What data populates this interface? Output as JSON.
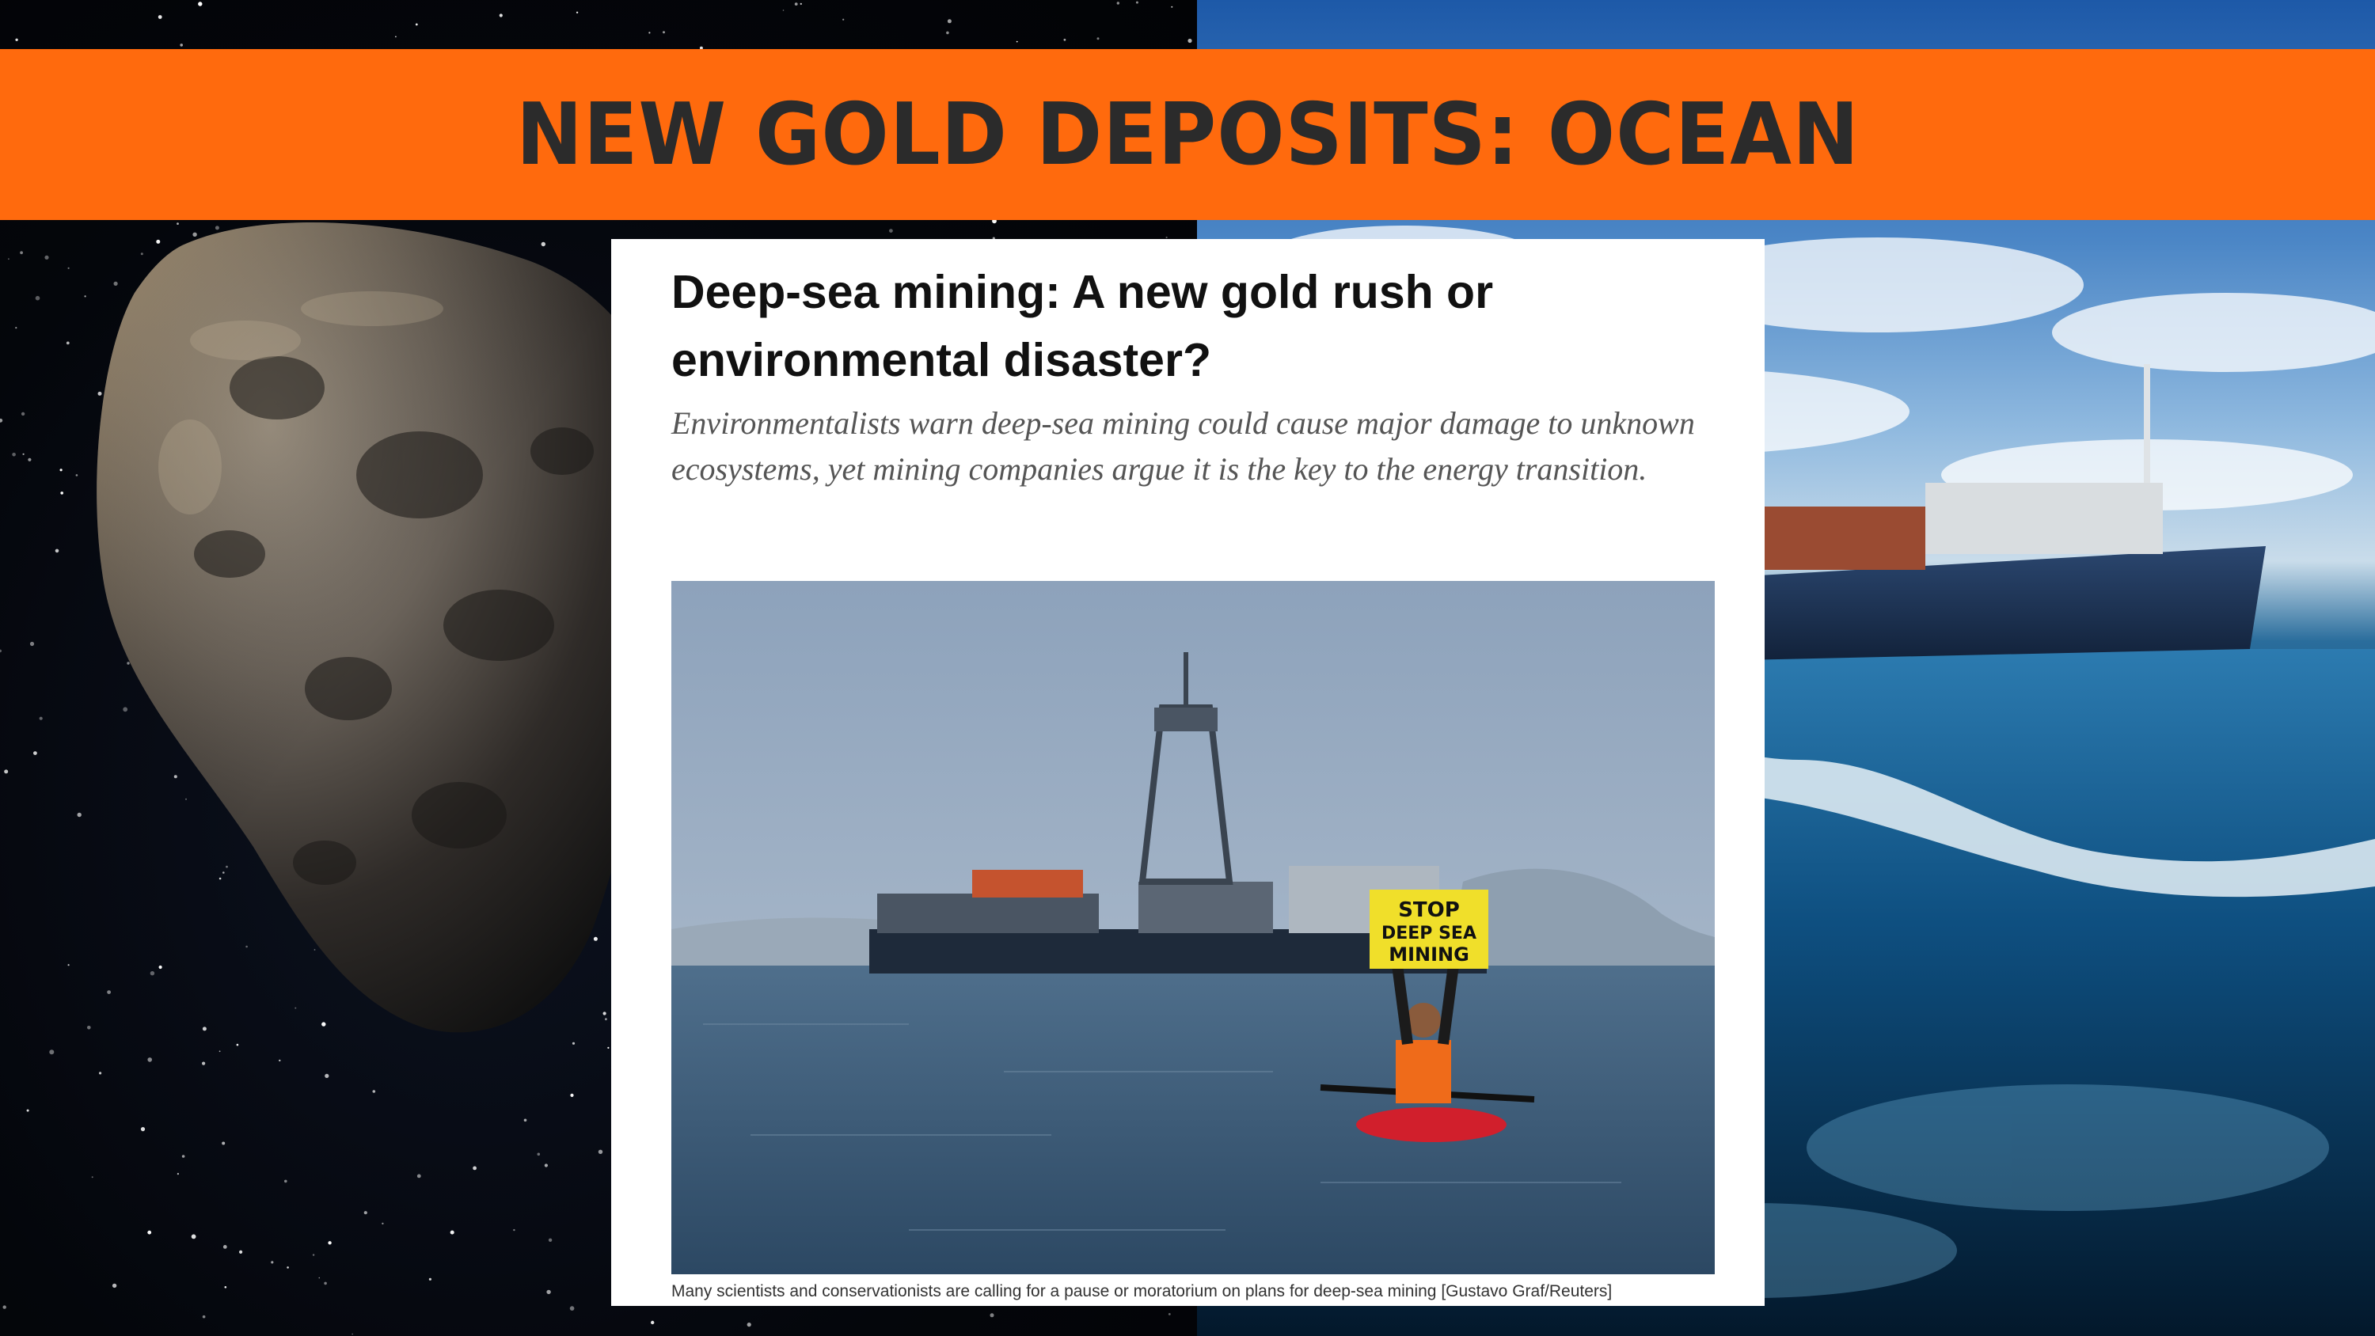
{
  "banner": {
    "title": "NEW GOLD DEPOSITS: OCEAN",
    "background_color": "#ff6a0d",
    "text_color": "#2b2b2b"
  },
  "backgrounds": {
    "left": "space-asteroid-image",
    "right": "ocean-ship-image"
  },
  "article": {
    "headline": "Deep-sea mining: A new gold rush or environmental disaster?",
    "dek": "Environmentalists warn deep-sea mining could cause major damage to unknown ecosystems, yet mining companies argue it is the key to the energy transition.",
    "photo": {
      "description_icon": "protest-kayak-photo",
      "sign_lines": [
        "STOP",
        "DEEP SEA",
        "MINING"
      ]
    },
    "caption": "Many scientists and conservationists are calling for a pause or moratorium on plans for deep-sea mining [Gustavo Graf/Reuters]"
  }
}
